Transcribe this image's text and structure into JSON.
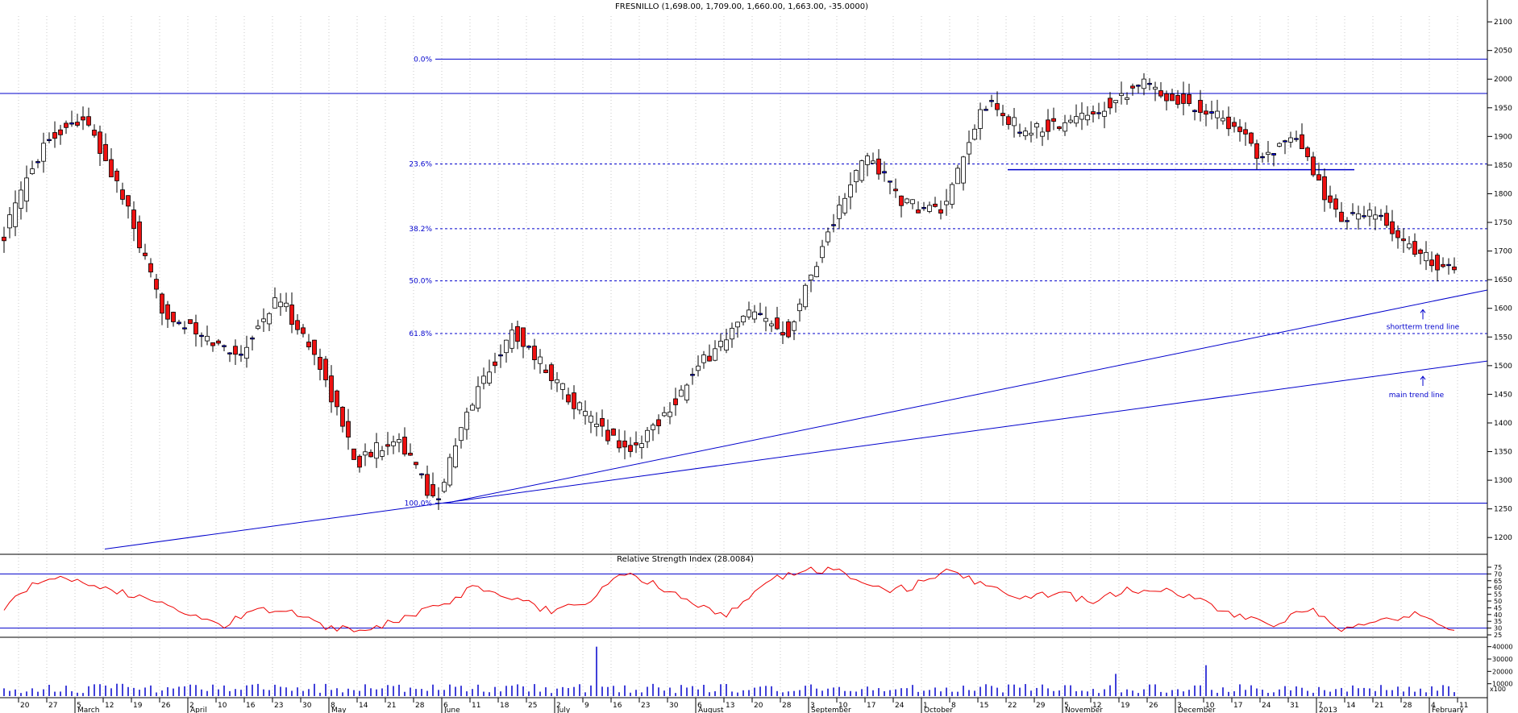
{
  "chart_data": [
    {
      "type": "candlestick",
      "title": "FRESNILLO (1,698.00, 1,709.00, 1,660.00, 1,663.00, -35.0000)",
      "ylim": [
        1175,
        2110
      ],
      "y_ticks": [
        1200,
        1250,
        1300,
        1350,
        1400,
        1450,
        1500,
        1550,
        1600,
        1650,
        1700,
        1750,
        1800,
        1850,
        1900,
        1950,
        2000,
        2050,
        2100
      ],
      "x_axis_days": [
        "20",
        "27",
        "5",
        "12",
        "19",
        "26",
        "2",
        "10",
        "16",
        "23",
        "30",
        "8",
        "14",
        "21",
        "28",
        "6",
        "11",
        "18",
        "25",
        "2",
        "9",
        "16",
        "23",
        "30",
        "6",
        "13",
        "20",
        "28",
        "3",
        "10",
        "17",
        "24",
        "1",
        "8",
        "15",
        "22",
        "29",
        "5",
        "12",
        "19",
        "26",
        "3",
        "10",
        "17",
        "24",
        "31",
        "7",
        "14",
        "21",
        "28",
        "4",
        "11"
      ],
      "x_axis_months": [
        "March",
        "April",
        "May",
        "June",
        "July",
        "August",
        "September",
        "October",
        "November",
        "December",
        "2013",
        "February"
      ],
      "key_closes": [
        1730,
        1890,
        1935,
        1800,
        1600,
        1550,
        1520,
        1620,
        1510,
        1330,
        1380,
        1260,
        1450,
        1560,
        1480,
        1400,
        1350,
        1430,
        1520,
        1590,
        1560,
        1730,
        1870,
        1780,
        1770,
        1960,
        1910,
        1920,
        1950,
        1995,
        1960,
        1940,
        1870,
        1890,
        1760,
        1760,
        1700,
        1663
      ],
      "fibonacci": {
        "high": 2035,
        "low": 1260,
        "levels": [
          {
            "label": "0.0%",
            "value": 2035
          },
          {
            "label": "23.6%",
            "value": 1852
          },
          {
            "label": "38.2%",
            "value": 1739
          },
          {
            "label": "50.0%",
            "value": 1648
          },
          {
            "label": "61.8%",
            "value": 1556
          },
          {
            "label": "100.0%",
            "value": 1260
          }
        ]
      },
      "resistance_level": 1975,
      "support_segment": 1842,
      "trend_lines": [
        {
          "label": "shortterm trend line",
          "start": 1260,
          "end": 1632
        },
        {
          "label": "main trend line",
          "start": 1180,
          "end": 1508
        }
      ],
      "colors": {
        "line": "#0000cc",
        "bull": "#ffffff",
        "bear": "#ee1111",
        "doji": "#0000ff"
      }
    },
    {
      "type": "line",
      "title": "Relative Strength Index (28.0084)",
      "ylim": [
        25,
        75
      ],
      "y_ticks": [
        25,
        30,
        35,
        40,
        45,
        50,
        55,
        60,
        65,
        70,
        75
      ],
      "levels": [
        70,
        30
      ],
      "key_values": [
        45,
        65,
        66,
        58,
        52,
        40,
        32,
        45,
        42,
        30,
        28,
        38,
        45,
        62,
        52,
        43,
        48,
        70,
        62,
        48,
        40,
        63,
        74,
        72,
        58,
        60,
        72,
        62,
        52,
        56,
        50,
        58,
        58,
        50,
        40,
        30,
        46,
        28,
        34,
        40,
        29
      ],
      "color": "#ee0000"
    },
    {
      "type": "bar",
      "title": "",
      "ylim": [
        0,
        45000
      ],
      "y_ticks": [
        10000,
        20000,
        30000,
        40000
      ],
      "footer_label": "x100",
      "spikes": [
        {
          "day": 105,
          "value": 40000
        },
        {
          "day": 213,
          "value": 25000
        },
        {
          "day": 197,
          "value": 18000
        }
      ],
      "color": "#0000cc"
    }
  ]
}
